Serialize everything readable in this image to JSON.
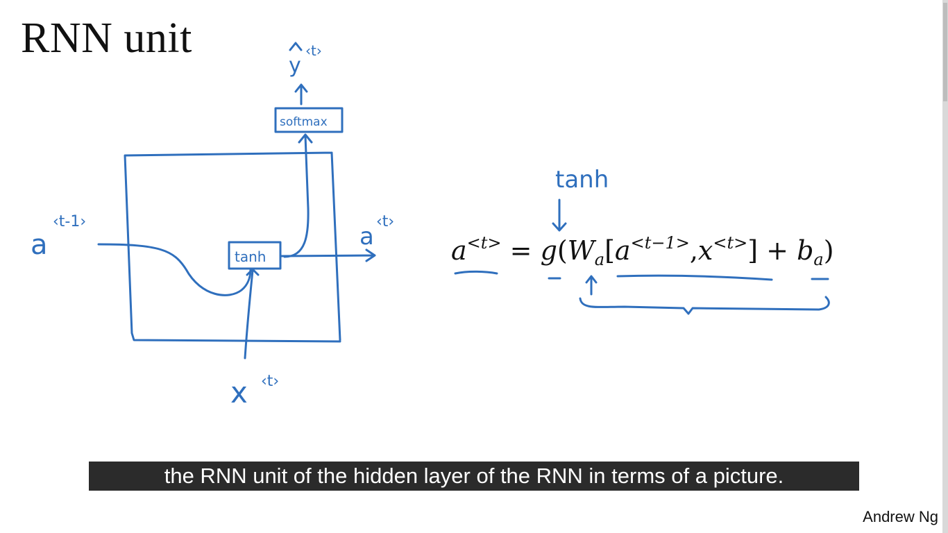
{
  "slide": {
    "title": "RNN unit",
    "author": "Andrew Ng"
  },
  "diagram": {
    "input_prev_label": "a",
    "input_prev_sup": "‹t-1›",
    "output_label": "a",
    "output_sup": "‹t›",
    "input_x_label": "x",
    "input_x_sup": "‹t›",
    "cell_box_label": "tanh",
    "softmax_box_label": "softmax",
    "prediction_label": "y",
    "prediction_sup": "‹t›",
    "annotation_label": "tanh"
  },
  "equation": {
    "lhs": "a",
    "lhs_sup": "<t>",
    "equals": "=",
    "func": "g",
    "open_paren": "(",
    "weight": "W",
    "weight_sub": "a",
    "open_bracket": "[",
    "prev_a": "a",
    "prev_a_sup": "<t−1>",
    "comma": ",",
    "x": "x",
    "x_sup": "<t>",
    "close_bracket": "]",
    "plus": "+",
    "bias": "b",
    "bias_sub": "a",
    "close_paren": ")"
  },
  "caption": {
    "text": "the RNN unit of the hidden layer of the RNN in terms of a picture."
  },
  "colors": {
    "ink": "#2f6fbd",
    "caption_bg": "#2b2b2b",
    "caption_text": "#ffffff",
    "text": "#111111"
  }
}
